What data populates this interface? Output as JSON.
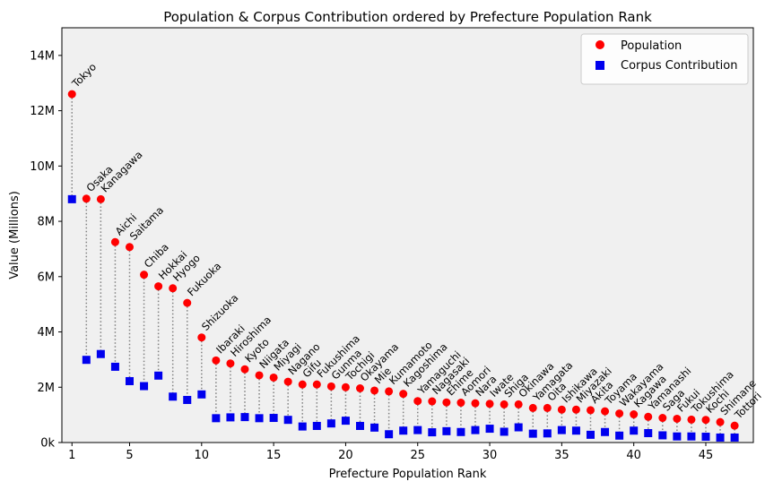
{
  "chart_data": {
    "type": "scatter",
    "title": "Population & Corpus Contribution ordered by Prefecture Population Rank",
    "xlabel": "Prefecture Population Rank",
    "ylabel": "Value (Millions)",
    "xlim": [
      0.3,
      48.3
    ],
    "ylim": [
      0,
      15
    ],
    "xticks": [
      1,
      5,
      10,
      15,
      20,
      25,
      30,
      35,
      40,
      45
    ],
    "yticks": [
      0,
      2,
      4,
      6,
      8,
      10,
      12,
      14
    ],
    "ytick_labels": [
      "0k",
      "2M",
      "4M",
      "6M",
      "8M",
      "10M",
      "12M",
      "14M"
    ],
    "legend_position": "top-right",
    "background": "#f0f0f0",
    "connector_style": "dotted-gray",
    "rank": [
      1,
      2,
      3,
      4,
      5,
      6,
      7,
      8,
      9,
      10,
      11,
      12,
      13,
      14,
      15,
      16,
      17,
      18,
      19,
      20,
      21,
      22,
      23,
      24,
      25,
      26,
      27,
      28,
      29,
      30,
      31,
      32,
      33,
      34,
      35,
      36,
      37,
      38,
      39,
      40,
      41,
      42,
      43,
      44,
      45,
      46,
      47
    ],
    "prefectures": [
      "Tokyo",
      "Osaka",
      "Kanagawa",
      "Aichi",
      "Saitama",
      "Chiba",
      "Hokkai",
      "Hyogo",
      "Fukuoka",
      "Shizuoka",
      "Ibaraki",
      "Hiroshima",
      "Kyoto",
      "Niigata",
      "Miyagi",
      "Nagano",
      "Gifu",
      "Fukushima",
      "Gunma",
      "Tochigi",
      "Okayama",
      "Mie",
      "Kumamoto",
      "Kagoshima",
      "Yamaguchi",
      "Nagasaki",
      "Ehime",
      "Aomori",
      "Nara",
      "Iwate",
      "Shiga",
      "Okinawa",
      "Yamagata",
      "Oita",
      "Ishikawa",
      "Miyazaki",
      "Akita",
      "Toyama",
      "Wakayama",
      "Kagawa",
      "Yamanashi",
      "Saga",
      "Fukui",
      "Tokushima",
      "Kochi",
      "Shimane",
      "Tottori"
    ],
    "series": [
      {
        "name": "Population",
        "color": "#ff0000",
        "marker": "circle",
        "values": [
          12.6,
          8.82,
          8.8,
          7.25,
          7.07,
          6.07,
          5.65,
          5.58,
          5.05,
          3.8,
          2.97,
          2.86,
          2.65,
          2.43,
          2.35,
          2.2,
          2.1,
          2.1,
          2.03,
          2.0,
          1.96,
          1.88,
          1.85,
          1.76,
          1.5,
          1.49,
          1.45,
          1.44,
          1.42,
          1.4,
          1.38,
          1.38,
          1.25,
          1.25,
          1.19,
          1.19,
          1.17,
          1.13,
          1.05,
          1.02,
          0.93,
          0.89,
          0.86,
          0.83,
          0.82,
          0.74,
          0.61
        ]
      },
      {
        "name": "Corpus Contribution",
        "color": "#0000ee",
        "marker": "square",
        "values": [
          8.8,
          2.99,
          3.2,
          2.74,
          2.22,
          2.04,
          2.42,
          1.66,
          1.54,
          1.74,
          0.88,
          0.91,
          0.92,
          0.88,
          0.89,
          0.82,
          0.58,
          0.6,
          0.69,
          0.79,
          0.6,
          0.54,
          0.3,
          0.43,
          0.45,
          0.37,
          0.41,
          0.38,
          0.45,
          0.5,
          0.39,
          0.55,
          0.32,
          0.33,
          0.45,
          0.43,
          0.28,
          0.38,
          0.25,
          0.43,
          0.34,
          0.26,
          0.22,
          0.22,
          0.21,
          0.18,
          0.18
        ]
      }
    ]
  }
}
